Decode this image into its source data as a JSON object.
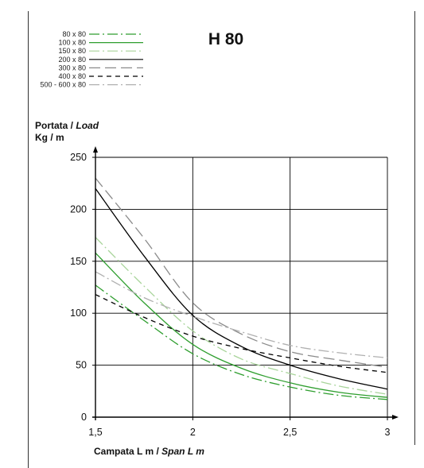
{
  "chart_data": {
    "type": "line",
    "title": "H 80",
    "ylabel": {
      "line1": "Portata",
      "sep": " / ",
      "line1_italic": "Load",
      "line2": "Kg / m"
    },
    "xlabel": {
      "text": "Campata L m",
      "sep": " / ",
      "italic": "Span L m"
    },
    "xlim": [
      1.5,
      3
    ],
    "ylim": [
      0,
      250
    ],
    "xticks": [
      1.5,
      2,
      2.5,
      3
    ],
    "xtick_labels": [
      "1,5",
      "2",
      "2,5",
      "3"
    ],
    "yticks": [
      0,
      50,
      100,
      150,
      200,
      250
    ],
    "ytick_labels": [
      "0",
      "50",
      "100",
      "150",
      "200",
      "250"
    ],
    "grid": true,
    "legend_position": "top-left",
    "series": [
      {
        "name": "80 x 80",
        "color": "#2e9e2e",
        "dash": "dashdot",
        "x": [
          1.5,
          1.75,
          2,
          2.25,
          2.5,
          2.75,
          3
        ],
        "y": [
          127,
          93,
          61,
          41,
          29,
          21,
          17
        ]
      },
      {
        "name": "100 x 80",
        "color": "#2e9e2e",
        "dash": "solid",
        "x": [
          1.5,
          1.75,
          2,
          2.25,
          2.5,
          2.75,
          3
        ],
        "y": [
          158,
          110,
          70,
          47,
          33,
          24,
          19
        ]
      },
      {
        "name": "150 x 80",
        "color": "#a8d49a",
        "dash": "dashdot",
        "x": [
          1.5,
          1.75,
          2,
          2.25,
          2.5,
          2.75,
          3
        ],
        "y": [
          173,
          126,
          83,
          56,
          42,
          30,
          22
        ]
      },
      {
        "name": "200 x 80",
        "color": "#000000",
        "dash": "solid",
        "x": [
          1.5,
          1.75,
          2,
          2.25,
          2.5,
          2.75,
          3
        ],
        "y": [
          220,
          155,
          98,
          68,
          50,
          37,
          27
        ]
      },
      {
        "name": "300 x 80",
        "color": "#8a8a8a",
        "dash": "longdash",
        "x": [
          1.5,
          1.75,
          2,
          2.25,
          2.5,
          2.75,
          3
        ],
        "y": [
          230,
          172,
          110,
          80,
          63,
          55,
          48
        ]
      },
      {
        "name": "400 x 80",
        "color": "#000000",
        "dash": "shortdash",
        "x": [
          1.5,
          1.75,
          2,
          2.25,
          2.5,
          2.75,
          3
        ],
        "y": [
          118,
          96,
          78,
          66,
          57,
          49,
          43
        ]
      },
      {
        "name": "500 - 600 x 80",
        "color": "#b0b0b0",
        "dash": "dashdot",
        "x": [
          1.5,
          1.75,
          2,
          2.25,
          2.5,
          2.75,
          3
        ],
        "y": [
          140,
          115,
          97,
          82,
          69,
          62,
          57
        ]
      }
    ]
  }
}
